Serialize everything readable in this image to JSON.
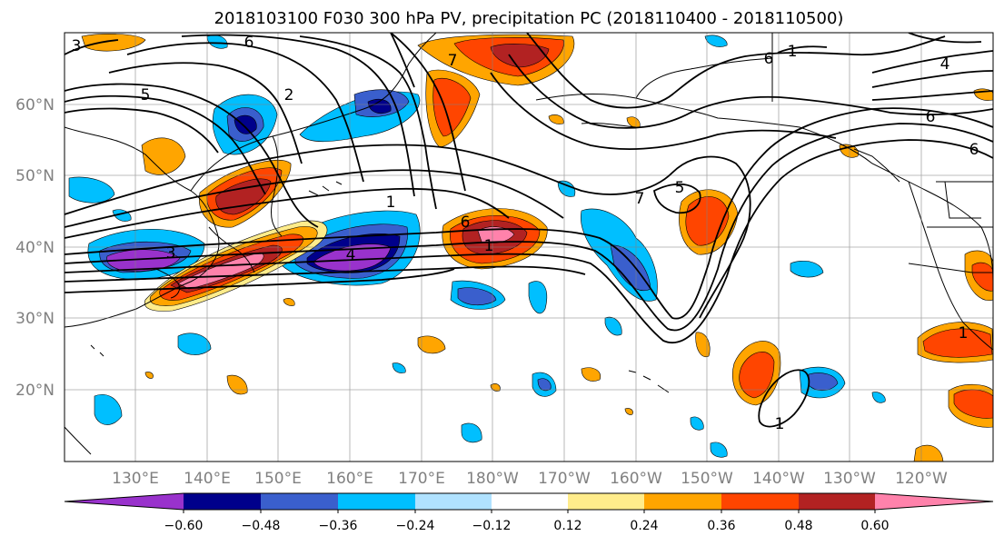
{
  "title": "2018103100 F030 300 hPa PV, precipitation PC (2018110400 - 2018110500)",
  "map": {
    "lat_labels": [
      "60°N",
      "50°N",
      "40°N",
      "30°N",
      "20°N"
    ],
    "lon_labels": [
      "130°E",
      "140°E",
      "150°E",
      "160°E",
      "170°E",
      "180°W",
      "170°W",
      "160°W",
      "150°W",
      "140°W",
      "130°W",
      "120°W"
    ],
    "pv_contour_labels": [
      "3",
      "6",
      "5",
      "2",
      "1",
      "3",
      "6",
      "7",
      "1",
      "4",
      "6",
      "1",
      "5",
      "7",
      "6",
      "1",
      "4",
      "6",
      "1"
    ]
  },
  "colorbar": {
    "ticks": [
      "−0.60",
      "−0.48",
      "−0.36",
      "−0.24",
      "−0.12",
      "0.12",
      "0.24",
      "0.36",
      "0.48",
      "0.60"
    ],
    "colors": [
      "#9932CC",
      "#00008B",
      "#3A5FCD",
      "#00BFFF",
      "#B0E2FF",
      "#FFFFFF",
      "#FFEC8B",
      "#FFA500",
      "#FF4500",
      "#B22222",
      "#FF82AB"
    ]
  }
}
